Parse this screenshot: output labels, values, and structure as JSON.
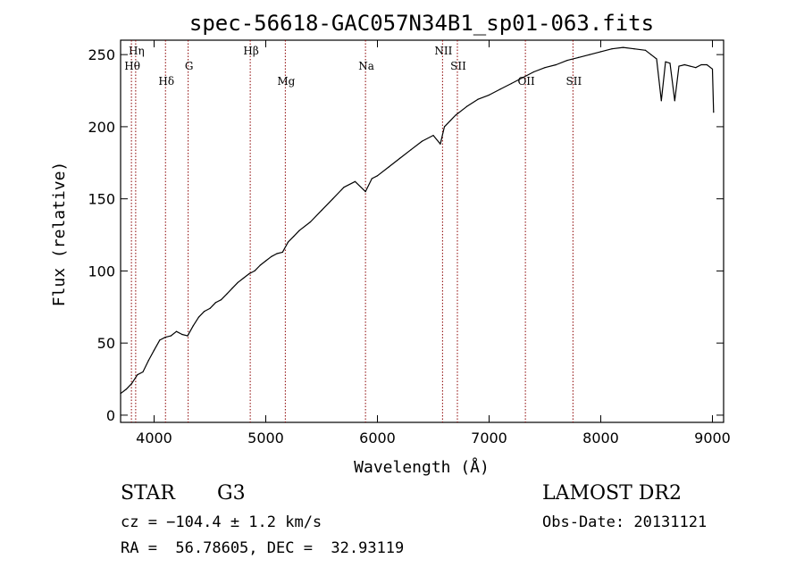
{
  "chart_data": {
    "type": "line",
    "title": "spec-56618-GAC057N34B1_sp01-063.fits",
    "xlabel": "Wavelength (Å)",
    "ylabel": "Flux (relative)",
    "xlim": [
      3700,
      9100
    ],
    "ylim": [
      -5,
      260
    ],
    "x_ticks": [
      4000,
      5000,
      6000,
      7000,
      8000,
      9000
    ],
    "x_tick_labels": [
      "4000",
      "5000",
      "6000",
      "7000",
      "8000",
      "9000"
    ],
    "y_ticks": [
      0,
      50,
      100,
      150,
      200,
      250
    ],
    "y_tick_labels": [
      "0",
      "50",
      "100",
      "150",
      "200",
      "250"
    ],
    "grid": false,
    "line_color": "#000000",
    "marker_line_color": "#8b0000",
    "series": [
      {
        "x": [
          3700,
          3750,
          3800,
          3850,
          3900,
          3950,
          4000,
          4050,
          4100,
          4150,
          4200,
          4250,
          4300,
          4350,
          4400,
          4450,
          4500,
          4550,
          4600,
          4650,
          4700,
          4750,
          4800,
          4850,
          4900,
          4950,
          5000,
          5050,
          5100,
          5150,
          5200,
          5250,
          5300,
          5400,
          5500,
          5600,
          5700,
          5800,
          5893,
          5950,
          6000,
          6100,
          6200,
          6300,
          6400,
          6500,
          6563,
          6600,
          6700,
          6800,
          6900,
          7000,
          7100,
          7200,
          7300,
          7400,
          7500,
          7600,
          7700,
          7800,
          7900,
          8000,
          8100,
          8200,
          8300,
          8400,
          8450,
          8500,
          8542,
          8580,
          8620,
          8662,
          8700,
          8750,
          8800,
          8850,
          8900,
          8950,
          9000,
          9010
        ],
        "y": [
          15,
          18,
          22,
          28,
          30,
          38,
          45,
          52,
          54,
          55,
          58,
          56,
          55,
          62,
          68,
          72,
          74,
          78,
          80,
          84,
          88,
          92,
          95,
          98,
          100,
          104,
          107,
          110,
          112,
          113,
          120,
          124,
          128,
          134,
          142,
          150,
          158,
          162,
          155,
          164,
          166,
          172,
          178,
          184,
          190,
          194,
          188,
          200,
          208,
          214,
          219,
          222,
          226,
          230,
          234,
          238,
          241,
          243,
          246,
          248,
          250,
          252,
          254,
          255,
          254,
          253,
          250,
          247,
          218,
          245,
          244,
          218,
          242,
          243,
          242,
          241,
          243,
          243,
          240,
          210
        ]
      }
    ],
    "line_markers": [
      {
        "label": "Hη",
        "x": 3835,
        "row": 0
      },
      {
        "label": "Hθ",
        "x": 3797,
        "row": 1
      },
      {
        "label": "Hδ",
        "x": 4102,
        "row": 2
      },
      {
        "label": "G",
        "x": 4305,
        "row": 1
      },
      {
        "label": "Hβ",
        "x": 4861,
        "row": 0
      },
      {
        "label": "Mg",
        "x": 5175,
        "row": 2
      },
      {
        "label": "Na",
        "x": 5893,
        "row": 1
      },
      {
        "label": "NII",
        "x": 6583,
        "row": 0
      },
      {
        "label": "SII",
        "x": 6716,
        "row": 1
      },
      {
        "label": "OII",
        "x": 7325,
        "row": 2
      },
      {
        "label": "SII",
        "x": 7751,
        "row": 2
      }
    ]
  },
  "footer": {
    "object_class": "STAR",
    "subclass": "G3",
    "redshift": "cz = −104.4 ± 1.2 km/s",
    "coords": "RA =  56.78605, DEC =  32.93119",
    "survey": "LAMOST DR2",
    "obs_date": "Obs-Date: 20131121"
  }
}
